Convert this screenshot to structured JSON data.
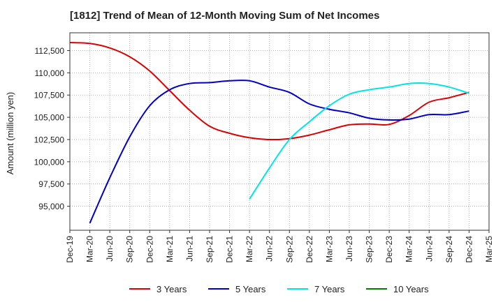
{
  "chart_data": {
    "type": "line",
    "title": "[1812]  Trend of Mean of 12-Month Moving Sum of Net Incomes",
    "xlabel": "",
    "ylabel": "Amount (million yen)",
    "x_ticks": [
      "Dec-19",
      "Mar-20",
      "Jun-20",
      "Sep-20",
      "Dec-20",
      "Mar-21",
      "Jun-21",
      "Sep-21",
      "Dec-21",
      "Mar-22",
      "Jun-22",
      "Sep-22",
      "Dec-22",
      "Mar-23",
      "Jun-23",
      "Sep-23",
      "Dec-23",
      "Mar-24",
      "Jun-24",
      "Sep-24",
      "Dec-24",
      "Mar-25"
    ],
    "xlim": [
      "Dec-19",
      "Mar-25"
    ],
    "ylim": [
      92300,
      114500
    ],
    "y_ticks": [
      95000,
      97500,
      100000,
      102500,
      105000,
      107500,
      110000,
      112500
    ],
    "y_tick_labels": [
      "95,000",
      "97,500",
      "100,000",
      "102,500",
      "105,000",
      "107,500",
      "110,000",
      "112,500"
    ],
    "grid": true,
    "legend_position": "bottom",
    "series": [
      {
        "name": "3 Years",
        "color": "#dd0000",
        "points": [
          [
            "Dec-19",
            113400
          ],
          [
            "Mar-20",
            113300
          ],
          [
            "Jun-20",
            112800
          ],
          [
            "Sep-20",
            111800
          ],
          [
            "Dec-20",
            110200
          ],
          [
            "Mar-21",
            108000
          ],
          [
            "Jun-21",
            105800
          ],
          [
            "Sep-21",
            104000
          ],
          [
            "Dec-21",
            103200
          ],
          [
            "Mar-22",
            102700
          ],
          [
            "Jun-22",
            102500
          ],
          [
            "Sep-22",
            102600
          ],
          [
            "Dec-22",
            103000
          ],
          [
            "Mar-23",
            103600
          ],
          [
            "Jun-23",
            104150
          ],
          [
            "Sep-23",
            104250
          ],
          [
            "Dec-23",
            104200
          ],
          [
            "Mar-24",
            105200
          ],
          [
            "Jun-24",
            106700
          ],
          [
            "Sep-24",
            107200
          ],
          [
            "Dec-24",
            107800
          ]
        ]
      },
      {
        "name": "5 Years",
        "color": "#0000cc",
        "points": [
          [
            "Mar-20",
            93100
          ],
          [
            "Jun-20",
            98200
          ],
          [
            "Sep-20",
            102800
          ],
          [
            "Dec-20",
            106300
          ],
          [
            "Mar-21",
            108100
          ],
          [
            "Jun-21",
            108800
          ],
          [
            "Sep-21",
            108900
          ],
          [
            "Dec-21",
            109100
          ],
          [
            "Mar-22",
            109100
          ],
          [
            "Jun-22",
            108400
          ],
          [
            "Sep-22",
            107800
          ],
          [
            "Dec-22",
            106500
          ],
          [
            "Mar-23",
            105900
          ],
          [
            "Jun-23",
            105500
          ],
          [
            "Sep-23",
            104900
          ],
          [
            "Dec-23",
            104700
          ],
          [
            "Mar-24",
            104800
          ],
          [
            "Jun-24",
            105300
          ],
          [
            "Sep-24",
            105300
          ],
          [
            "Dec-24",
            105700
          ]
        ]
      },
      {
        "name": "7 Years",
        "color": "#00e5e5",
        "points": [
          [
            "Mar-22",
            95800
          ],
          [
            "Jun-22",
            99300
          ],
          [
            "Sep-22",
            102500
          ],
          [
            "Dec-22",
            104500
          ],
          [
            "Mar-23",
            106300
          ],
          [
            "Jun-23",
            107600
          ],
          [
            "Sep-23",
            108100
          ],
          [
            "Dec-23",
            108400
          ],
          [
            "Mar-24",
            108800
          ],
          [
            "Jun-24",
            108800
          ],
          [
            "Sep-24",
            108400
          ],
          [
            "Dec-24",
            107700
          ]
        ]
      },
      {
        "name": "10 Years",
        "color": "#008000",
        "points": []
      }
    ]
  }
}
